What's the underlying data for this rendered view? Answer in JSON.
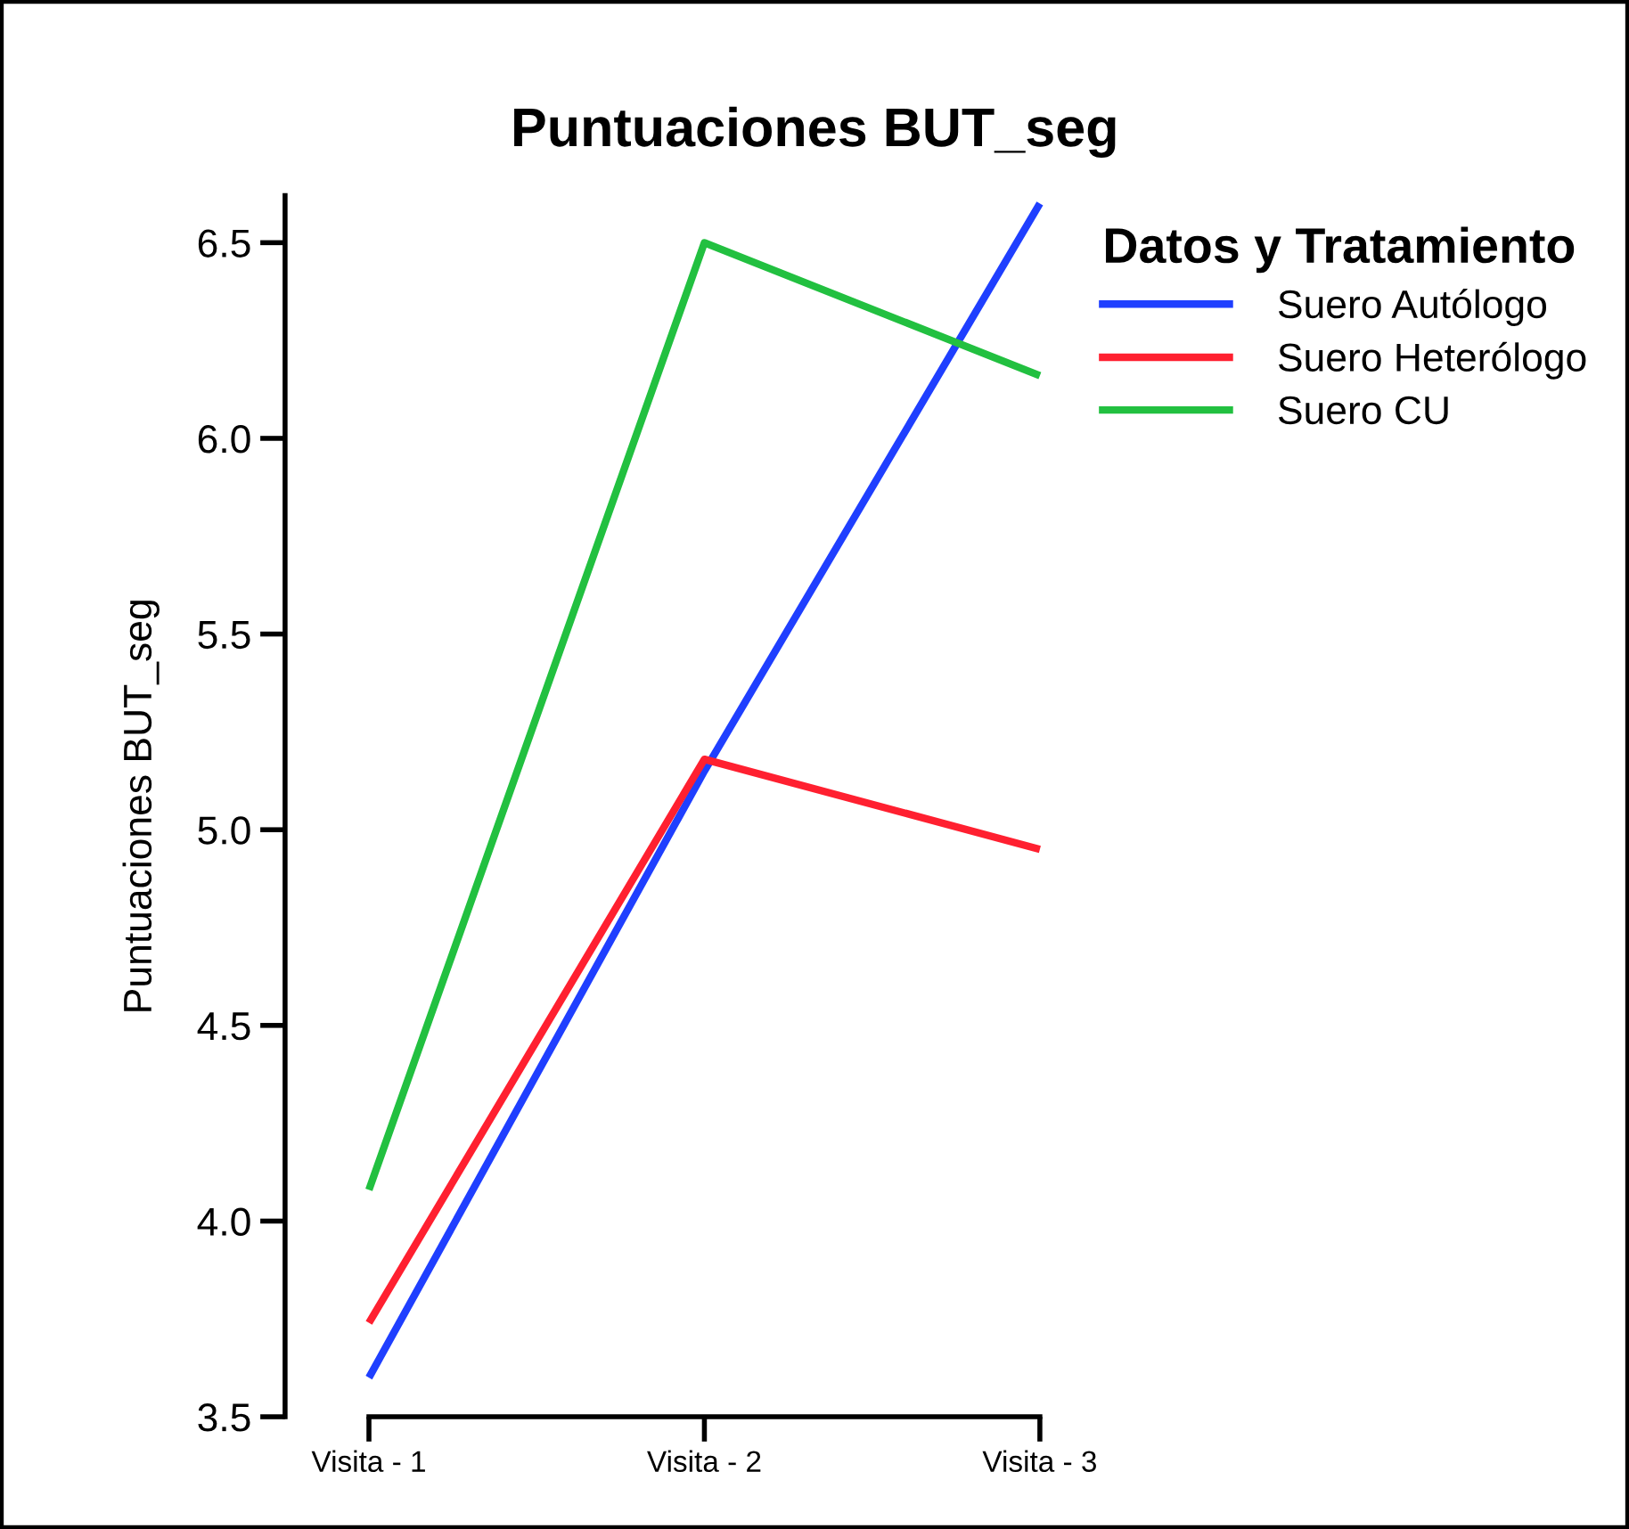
{
  "chart_data": {
    "type": "line",
    "title": "Puntuaciones BUT_seg",
    "ylabel": "Puntuaciones BUT_seg",
    "legend_title": "Datos y Tratamiento",
    "categories": [
      "Visita - 1",
      "Visita - 2",
      "Visita - 3"
    ],
    "series": [
      {
        "name": "Suero Autólogo",
        "color": "#1f3fff",
        "values": [
          3.6,
          5.15,
          6.6
        ]
      },
      {
        "name": "Suero Heterólogo",
        "color": "#ff2030",
        "values": [
          3.74,
          5.18,
          4.95
        ]
      },
      {
        "name": "Suero CU",
        "color": "#22c040",
        "values": [
          4.08,
          6.5,
          6.16
        ]
      }
    ],
    "ylim": [
      3.5,
      6.62
    ],
    "yticks": [
      {
        "value": 3.5,
        "label": "3.5"
      },
      {
        "value": 4.0,
        "label": "4.0"
      },
      {
        "value": 4.5,
        "label": "4.5"
      },
      {
        "value": 5.0,
        "label": "5.0"
      },
      {
        "value": 5.5,
        "label": "5.5"
      },
      {
        "value": 6.0,
        "label": "6.0"
      },
      {
        "value": 6.5,
        "label": "6.5"
      }
    ],
    "grid": false,
    "legend": "right",
    "line_style": "solid",
    "marker": "none"
  }
}
